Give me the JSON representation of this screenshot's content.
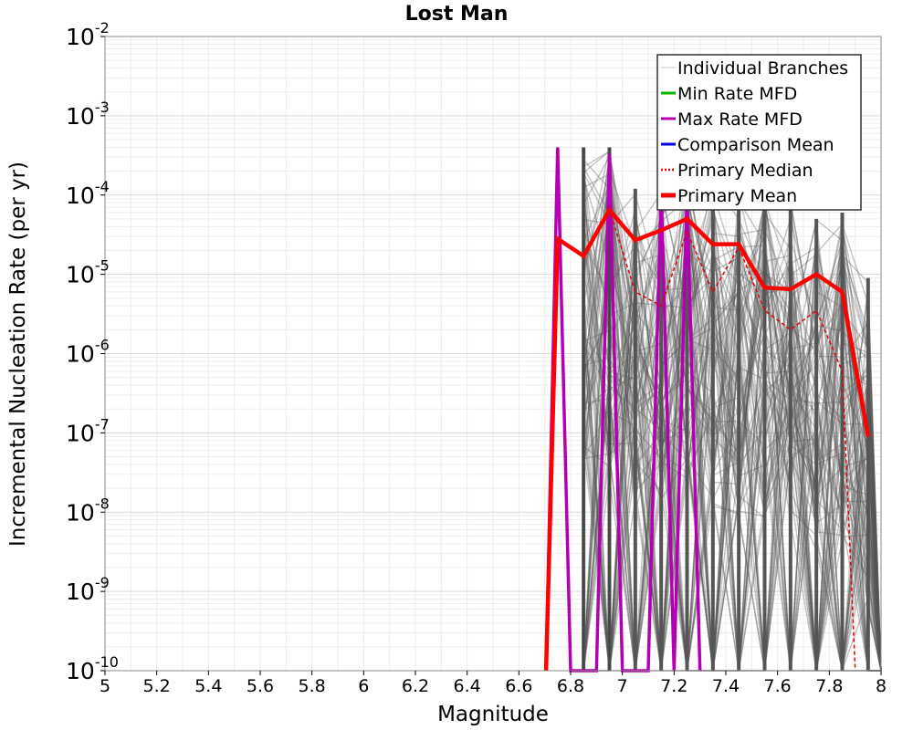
{
  "chart_data": {
    "type": "line",
    "title": "Lost Man",
    "xlabel": "Magnitude",
    "ylabel": "Incremental Nucleation Rate (per yr)",
    "xlim": [
      5.0,
      8.0
    ],
    "ylim": [
      1e-10,
      0.01
    ],
    "yscale": "log",
    "grid": true,
    "x_ticks": [
      5.0,
      5.2,
      5.4,
      5.6,
      5.8,
      6.0,
      6.2,
      6.4,
      6.6,
      6.8,
      7.0,
      7.2,
      7.4,
      7.6,
      7.8,
      8.0
    ],
    "x_tick_labels": [
      "5",
      "5.2",
      "5.4",
      "5.6",
      "5.8",
      "6",
      "6.2",
      "6.4",
      "6.6",
      "6.8",
      "7",
      "7.2",
      "7.4",
      "7.6",
      "7.8",
      "8"
    ],
    "y_tick_labels": [
      {
        "exponent": -2,
        "base": "10",
        "sup": "-2"
      },
      {
        "exponent": -3,
        "base": "10",
        "sup": "-3"
      },
      {
        "exponent": -4,
        "base": "10",
        "sup": "-4"
      },
      {
        "exponent": -5,
        "base": "10",
        "sup": "-5"
      },
      {
        "exponent": -6,
        "base": "10",
        "sup": "-6"
      },
      {
        "exponent": -7,
        "base": "10",
        "sup": "-7"
      },
      {
        "exponent": -8,
        "base": "10",
        "sup": "-8"
      },
      {
        "exponent": -9,
        "base": "10",
        "sup": "-9"
      },
      {
        "exponent": -10,
        "base": "10",
        "sup": "-10"
      }
    ],
    "legend": {
      "position": "top-right",
      "entries": [
        {
          "label": "Individual Branches",
          "color": "#c8c8c8",
          "style": "thin"
        },
        {
          "label": "Min Rate MFD",
          "color": "#00b400",
          "style": "solid"
        },
        {
          "label": "Max Rate MFD",
          "color": "#b400b4",
          "style": "solid"
        },
        {
          "label": "Comparison Mean",
          "color": "#0000e6",
          "style": "solid"
        },
        {
          "label": " Primary Median",
          "color": "#e60000",
          "style": "dotted"
        },
        {
          "label": "Primary Mean",
          "color": "#ff0000",
          "style": "thick"
        }
      ]
    },
    "branch_envelope": {
      "name": "Individual Branches",
      "color": "#555555",
      "x": [
        6.85,
        6.95,
        7.05,
        7.15,
        7.25,
        7.35,
        7.45,
        7.55,
        7.65,
        7.75,
        7.85,
        7.95
      ],
      "upper": [
        0.0004,
        0.0004,
        0.00012,
        0.00013,
        0.0004,
        0.00018,
        0.00012,
        0.00011,
        0.00011,
        5e-05,
        6e-05,
        9e-06
      ]
    },
    "series": [
      {
        "name": "Primary Mean",
        "color": "#ff0000",
        "width": 4.5,
        "dash": "",
        "x": [
          6.705,
          6.75,
          6.85,
          6.95,
          7.05,
          7.15,
          7.25,
          7.35,
          7.45,
          7.55,
          7.65,
          7.75,
          7.85,
          7.95
        ],
        "y": [
          1e-10,
          2.8e-05,
          1.7e-05,
          6.5e-05,
          2.7e-05,
          3.6e-05,
          5e-05,
          2.4e-05,
          2.4e-05,
          6.8e-06,
          6.5e-06,
          1e-05,
          6e-06,
          9e-08
        ]
      },
      {
        "name": "Primary Median",
        "color": "#e60000",
        "width": 1.5,
        "dash": "4,3",
        "x": [
          6.75,
          6.85,
          6.95,
          7.05,
          7.15,
          7.25,
          7.35,
          7.45,
          7.55,
          7.65,
          7.75,
          7.85,
          7.9
        ],
        "y": [
          2.8e-05,
          1.7e-05,
          6.5e-05,
          6e-06,
          4e-06,
          3.5e-05,
          6e-06,
          2.2e-05,
          3.5e-06,
          2e-06,
          3.5e-06,
          6e-07,
          1e-10
        ]
      },
      {
        "name": "Max Rate MFD",
        "color": "#b400b4",
        "width": 3.5,
        "dash": "",
        "x": [
          6.705,
          6.75,
          6.8,
          6.9,
          6.95,
          7.0,
          7.1,
          7.15,
          7.2,
          7.25,
          7.3
        ],
        "y": [
          1e-10,
          0.0004,
          1e-10,
          1e-10,
          0.00033,
          1e-10,
          1e-10,
          0.00012,
          1e-10,
          0.0001,
          1e-10
        ]
      }
    ]
  }
}
